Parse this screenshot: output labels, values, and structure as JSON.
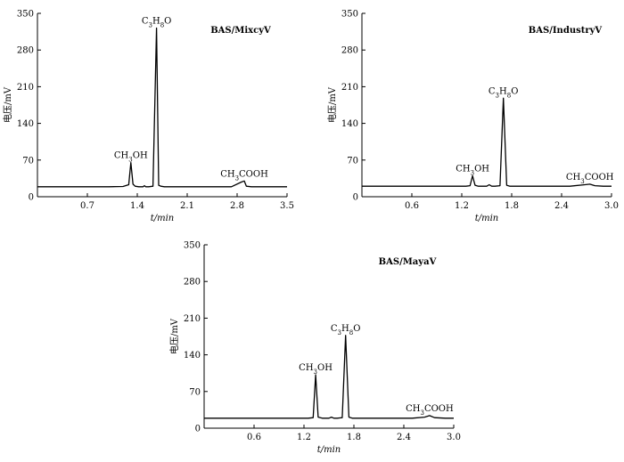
{
  "figure": {
    "chart_data": [
      {
        "type": "line",
        "title": "BAS/MixcyV",
        "xlabel": "t/min",
        "ylabel": "电压/mV",
        "xlim": [
          0,
          3.5
        ],
        "ylim": [
          0,
          350
        ],
        "xticks": [
          "0.7",
          "1.4",
          "2.1",
          "2.8",
          "3.5"
        ],
        "yticks": [
          "0",
          "70",
          "140",
          "210",
          "280",
          "350"
        ],
        "baseline": 19,
        "series": [
          {
            "x": [
              0,
              0.4,
              0.8,
              1.0,
              1.2,
              1.28,
              1.31,
              1.34,
              1.37,
              1.42,
              1.48,
              1.5,
              1.52,
              1.56,
              1.62,
              1.67,
              1.7,
              1.73,
              1.78,
              1.85,
              2.0,
              2.4,
              2.72,
              2.86,
              2.9,
              2.93,
              3.0,
              3.5
            ],
            "y": [
              19,
              19,
              19,
              19,
              19.5,
              23,
              65,
              24,
              20,
              19,
              19,
              21,
              19,
              19,
              20,
              322,
              22,
              20,
              19,
              19,
              19,
              19,
              19,
              28,
              30,
              20,
              19,
              19
            ]
          }
        ],
        "annotations": [
          {
            "text_html": "CH<tspan baseline-shift='sub' font-size='7'>3</tspan>OH",
            "x": 1.31,
            "y": 65
          },
          {
            "text_html": "C<tspan baseline-shift='sub' font-size='7'>3</tspan>H<tspan baseline-shift='sub' font-size='7'>8</tspan>O",
            "x": 1.67,
            "y": 322
          },
          {
            "text_html": "CH<tspan baseline-shift='sub' font-size='7'>3</tspan>COOH",
            "x": 2.9,
            "y": 30
          }
        ]
      },
      {
        "type": "line",
        "title": "BAS/IndustryV",
        "xlabel": "t/min",
        "ylabel": "电压/mV",
        "xlim": [
          0,
          3.0
        ],
        "ylim": [
          0,
          350
        ],
        "xticks": [
          "0.6",
          "1.2",
          "1.8",
          "2.4",
          "3.0"
        ],
        "yticks": [
          "0",
          "70",
          "140",
          "210",
          "280",
          "350"
        ],
        "baseline": 20,
        "series": [
          {
            "x": [
              0,
              0.5,
              1.0,
              1.25,
              1.3,
              1.33,
              1.36,
              1.4,
              1.5,
              1.53,
              1.56,
              1.6,
              1.66,
              1.7,
              1.74,
              1.78,
              1.85,
              2.0,
              2.5,
              2.68,
              2.74,
              2.8,
              2.9,
              3.0
            ],
            "y": [
              20,
              20,
              20,
              20,
              21,
              40,
              22,
              20,
              20,
              23,
              20,
              20,
              21,
              188,
              22,
              20,
              20,
              20,
              20,
              23,
              24,
              21,
              20,
              20
            ]
          }
        ],
        "annotations": [
          {
            "text_html": "CH<tspan baseline-shift='sub' font-size='7'>3</tspan>OH",
            "x": 1.33,
            "y": 40
          },
          {
            "text_html": "C<tspan baseline-shift='sub' font-size='7'>3</tspan>H<tspan baseline-shift='sub' font-size='7'>8</tspan>O",
            "x": 1.7,
            "y": 188
          },
          {
            "text_html": "CH<tspan baseline-shift='sub' font-size='7'>3</tspan>COOH",
            "x": 2.74,
            "y": 24
          }
        ]
      },
      {
        "type": "line",
        "title": "BAS/MayaV",
        "xlabel": "t/min",
        "ylabel": "电压/mV",
        "xlim": [
          0,
          3.0
        ],
        "ylim": [
          0,
          350
        ],
        "xticks": [
          "0.6",
          "1.2",
          "1.8",
          "2.4",
          "3.0"
        ],
        "yticks": [
          "0",
          "70",
          "140",
          "210",
          "280",
          "350"
        ],
        "baseline": 19,
        "series": [
          {
            "x": [
              0,
              0.5,
              1.0,
              1.25,
              1.31,
              1.34,
              1.37,
              1.42,
              1.5,
              1.53,
              1.56,
              1.6,
              1.66,
              1.7,
              1.74,
              1.78,
              1.85,
              2.0,
              2.5,
              2.65,
              2.71,
              2.77,
              2.9,
              3.0
            ],
            "y": [
              19,
              19,
              19,
              19,
              20,
              102,
              21,
              19,
              19,
              21,
              19,
              19,
              20,
              177,
              21,
              19,
              19,
              19,
              19,
              21,
              24,
              20,
              19,
              19
            ]
          }
        ],
        "annotations": [
          {
            "text_html": "CH<tspan baseline-shift='sub' font-size='7'>3</tspan>OH",
            "x": 1.34,
            "y": 102
          },
          {
            "text_html": "C<tspan baseline-shift='sub' font-size='7'>3</tspan>H<tspan baseline-shift='sub' font-size='7'>8</tspan>O",
            "x": 1.7,
            "y": 177
          },
          {
            "text_html": "CH<tspan baseline-shift='sub' font-size='7'>3</tspan>COOH",
            "x": 2.71,
            "y": 24
          }
        ]
      }
    ]
  }
}
